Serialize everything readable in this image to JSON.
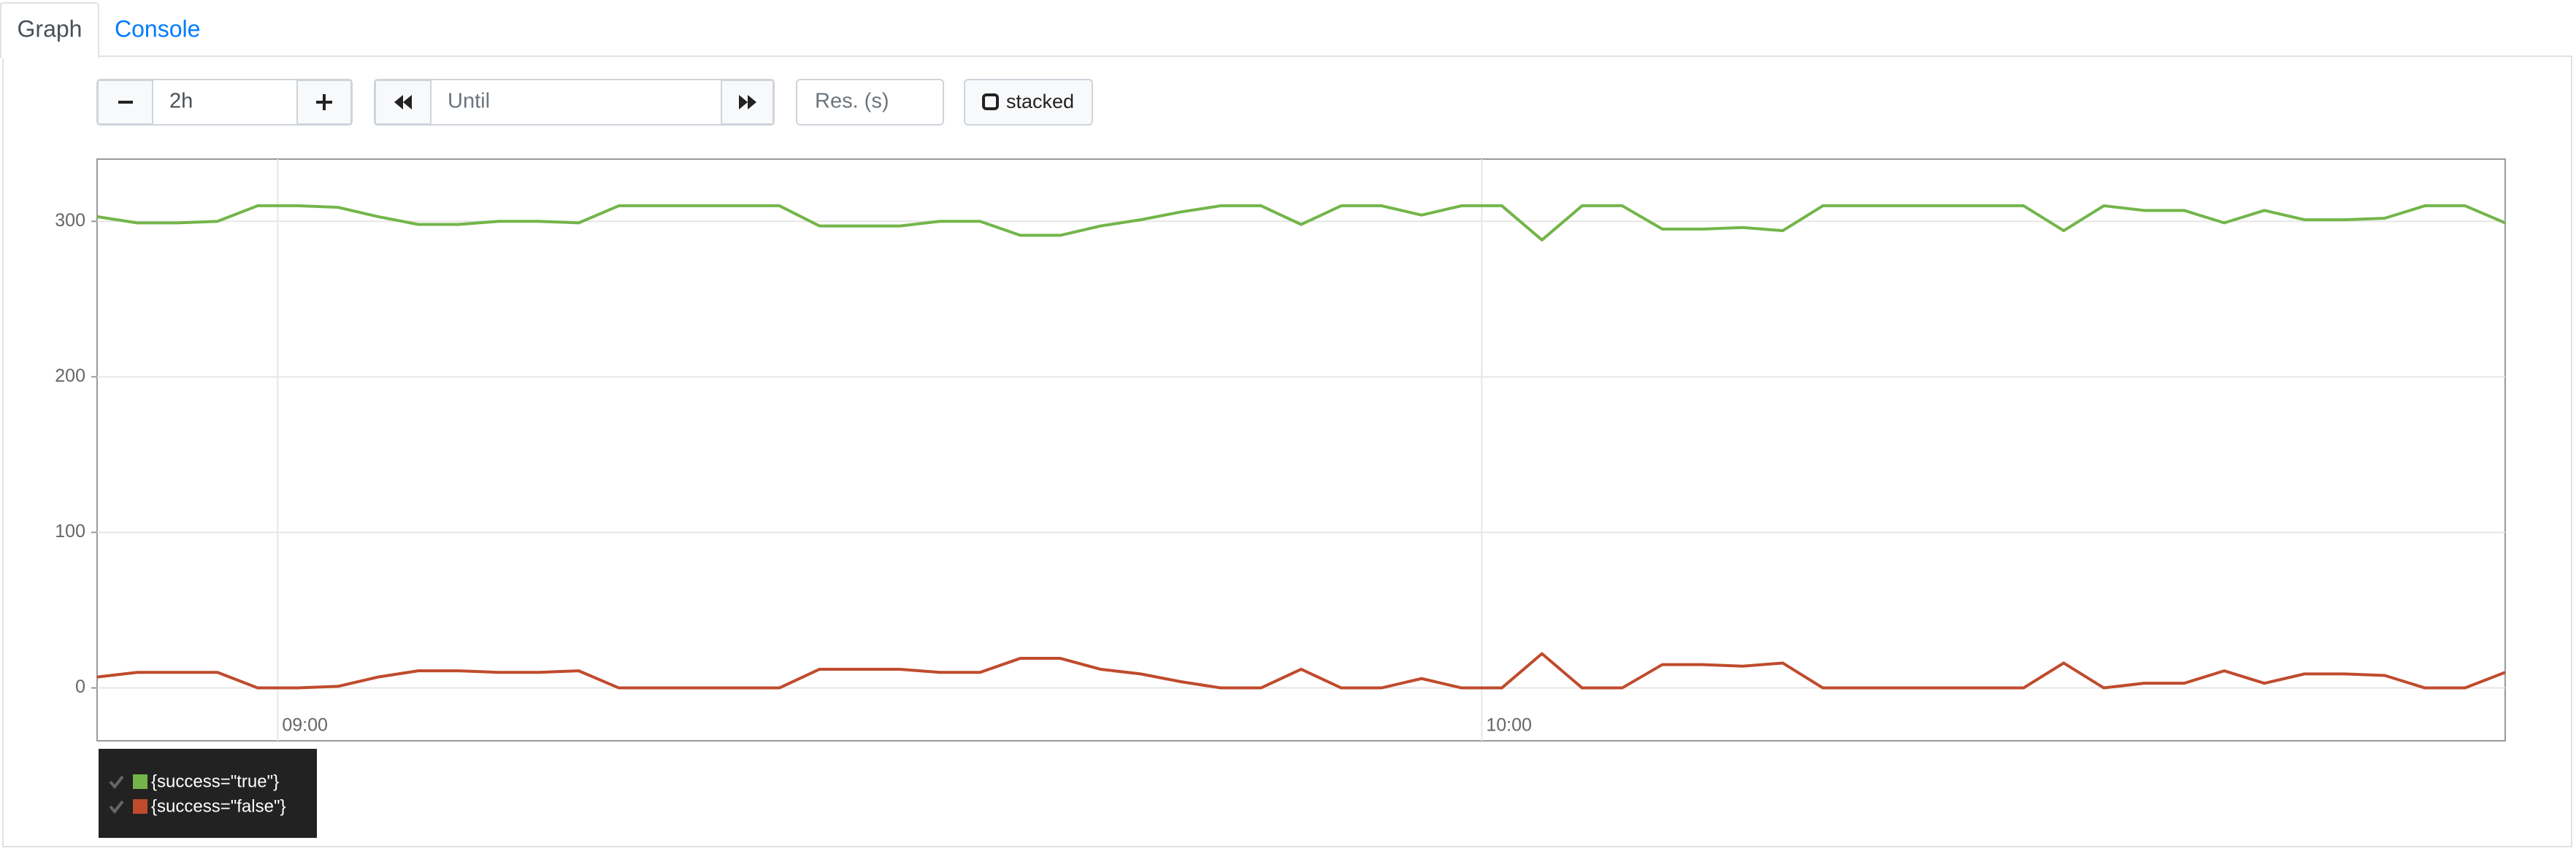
{
  "tabs": [
    "Graph",
    "Console"
  ],
  "controls": {
    "range": "2h",
    "until_placeholder": "Until",
    "resolution_placeholder": "Res. (s)",
    "stacked_label": "stacked"
  },
  "chart_data": {
    "type": "line",
    "x": [
      "08:51",
      "08:53",
      "08:55",
      "08:57",
      "08:59",
      "09:01",
      "09:03",
      "09:05",
      "09:07",
      "09:09",
      "09:11",
      "09:13",
      "09:15",
      "09:17",
      "09:19",
      "09:21",
      "09:23",
      "09:25",
      "09:27",
      "09:29",
      "09:31",
      "09:33",
      "09:35",
      "09:37",
      "09:39",
      "09:41",
      "09:43",
      "09:45",
      "09:47",
      "09:49",
      "09:51",
      "09:53",
      "09:55",
      "09:57",
      "09:59",
      "10:01",
      "10:03",
      "10:05",
      "10:07",
      "10:09",
      "10:11",
      "10:13",
      "10:15",
      "10:17",
      "10:19",
      "10:21",
      "10:23",
      "10:25",
      "10:27",
      "10:29",
      "10:31",
      "10:33",
      "10:35",
      "10:37",
      "10:39",
      "10:41",
      "10:43",
      "10:45",
      "10:47",
      "10:49",
      "10:51"
    ],
    "series": [
      {
        "name": "{success=\"true\"}",
        "color": "#73b54a",
        "values": [
          303,
          299,
          299,
          300,
          310,
          310,
          309,
          303,
          298,
          298,
          300,
          300,
          299,
          310,
          310,
          310,
          310,
          310,
          297,
          297,
          297,
          300,
          300,
          291,
          291,
          297,
          301,
          306,
          310,
          310,
          298,
          310,
          310,
          304,
          310,
          310,
          288,
          310,
          310,
          295,
          295,
          296,
          294,
          310,
          310,
          310,
          310,
          310,
          310,
          294,
          310,
          307,
          307,
          299,
          307,
          301,
          301,
          302,
          310,
          310,
          299
        ]
      },
      {
        "name": "{success=\"false\"}",
        "color": "#bf4b2c",
        "values": [
          7,
          10,
          10,
          10,
          0,
          0,
          1,
          7,
          11,
          11,
          10,
          10,
          11,
          0,
          0,
          0,
          0,
          0,
          12,
          12,
          12,
          10,
          10,
          19,
          19,
          12,
          9,
          4,
          0,
          0,
          12,
          0,
          0,
          6,
          0,
          0,
          22,
          0,
          0,
          15,
          15,
          14,
          16,
          0,
          0,
          0,
          0,
          0,
          0,
          16,
          0,
          3,
          3,
          11,
          3,
          9,
          9,
          8,
          0,
          0,
          10
        ]
      }
    ],
    "xlim": [
      "08:51",
      "10:51"
    ],
    "xticks": [
      "09:00",
      "10:00"
    ],
    "ylim": [
      -34,
      340
    ],
    "yticks": [
      0,
      100,
      200,
      300
    ],
    "grid": true
  }
}
